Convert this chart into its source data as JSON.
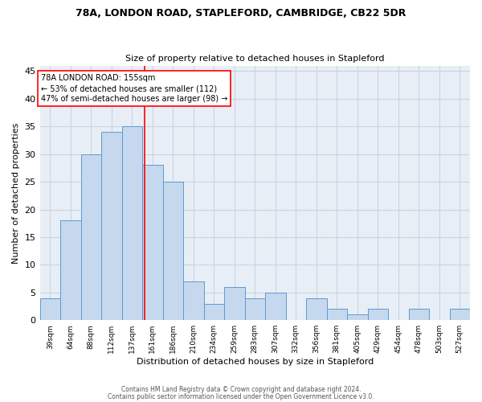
{
  "title1": "78A, LONDON ROAD, STAPLEFORD, CAMBRIDGE, CB22 5DR",
  "title2": "Size of property relative to detached houses in Stapleford",
  "xlabel": "Distribution of detached houses by size in Stapleford",
  "ylabel": "Number of detached properties",
  "footer1": "Contains HM Land Registry data © Crown copyright and database right 2024.",
  "footer2": "Contains public sector information licensed under the Open Government Licence v3.0.",
  "annotation_line1": "78A LONDON ROAD: 155sqm",
  "annotation_line2": "← 53% of detached houses are smaller (112)",
  "annotation_line3": "47% of semi-detached houses are larger (98) →",
  "bar_values": [
    4,
    18,
    30,
    34,
    35,
    28,
    25,
    7,
    3,
    6,
    4,
    5,
    0,
    4,
    2,
    1,
    2,
    0,
    2,
    0,
    2
  ],
  "bar_labels": [
    "39sqm",
    "64sqm",
    "88sqm",
    "112sqm",
    "137sqm",
    "161sqm",
    "186sqm",
    "210sqm",
    "234sqm",
    "259sqm",
    "283sqm",
    "307sqm",
    "332sqm",
    "356sqm",
    "381sqm",
    "405sqm",
    "429sqm",
    "454sqm",
    "478sqm",
    "503sqm",
    "527sqm"
  ],
  "bar_color": "#c5d8ed",
  "bar_edge_color": "#5b9bd5",
  "vline_x": 4.6,
  "vline_color": "red",
  "annotation_box_color": "red",
  "ylim": [
    0,
    46
  ],
  "yticks": [
    0,
    5,
    10,
    15,
    20,
    25,
    30,
    35,
    40,
    45
  ],
  "grid_color": "#c8d4e3",
  "background_color": "#e8eef5"
}
